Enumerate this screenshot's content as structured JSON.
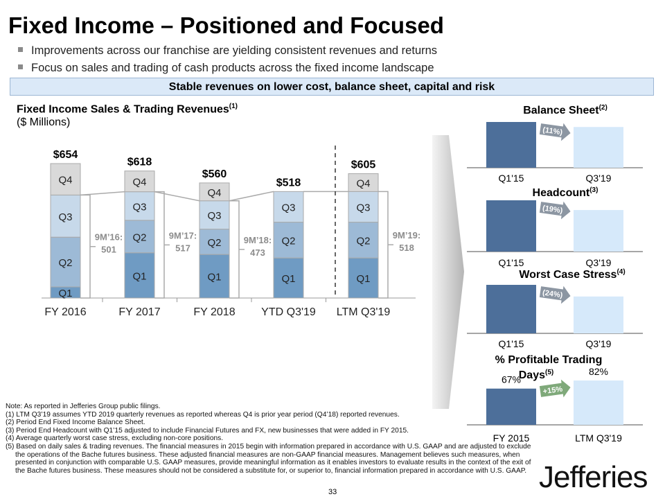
{
  "title": "Fixed Income – Positioned and Focused",
  "bullets": [
    "Improvements across our franchise are yielding consistent revenues and returns",
    "Focus on sales and trading of cash products across the fixed income landscape"
  ],
  "banner": "Stable revenues on lower cost, balance sheet, capital and risk",
  "colors": {
    "q1": "#6f9bc3",
    "q2": "#9dbad6",
    "q3": "#c7d9ea",
    "q4": "#d9d9d9",
    "dark_bar": "#4d6f9a",
    "light_bar": "#d6e9fa",
    "decline_arrow": "#8c96a2",
    "increase_arrow": "#7fa97a",
    "banner": "#dbe9f8"
  },
  "chart_data": [
    {
      "type": "bar",
      "stacked": true,
      "title": "Fixed Income Sales & Trading Revenues",
      "title_note": "(1)",
      "unit": "($ Millions)",
      "categories": [
        "FY 2016",
        "FY 2017",
        "FY 2018",
        "YTD Q3'19",
        "LTM Q3'19"
      ],
      "series": [
        {
          "name": "Q1",
          "values": [
            54,
            220,
            212,
            195,
            195
          ]
        },
        {
          "name": "Q2",
          "values": [
            242,
            158,
            123,
            174,
            174
          ]
        },
        {
          "name": "Q3",
          "values": [
            205,
            139,
            138,
            149,
            149
          ]
        },
        {
          "name": "Q4",
          "values": [
            153,
            101,
            87,
            null,
            87
          ]
        }
      ],
      "totals": [
        "$654",
        "$618",
        "$560",
        "$518",
        "$605"
      ],
      "nine_month": [
        {
          "label": "9M’16:",
          "value": "501"
        },
        {
          "label": "9M’17:",
          "value": "517"
        },
        {
          "label": "9M’18:",
          "value": "473"
        },
        {
          "label": "9M’19:",
          "value": "518"
        }
      ],
      "grid": false
    },
    {
      "type": "bar",
      "title": "Balance Sheet",
      "note": "(2)",
      "categories": [
        "Q1'15",
        "Q3'19"
      ],
      "values": [
        100,
        89
      ],
      "change": "(11%)"
    },
    {
      "type": "bar",
      "title": "Headcount",
      "note": "(3)",
      "categories": [
        "Q1'15",
        "Q3'19"
      ],
      "values": [
        100,
        81
      ],
      "change": "(19%)"
    },
    {
      "type": "bar",
      "title": "Worst Case Stress",
      "note": "(4)",
      "categories": [
        "Q1'15",
        "Q3'19"
      ],
      "values": [
        100,
        76
      ],
      "change": "(24%)"
    },
    {
      "type": "bar",
      "title": "% Profitable Trading Days",
      "note": "(5)",
      "categories": [
        "FY 2015",
        "LTM Q3'19"
      ],
      "values": [
        67,
        82
      ],
      "value_labels": [
        "67%",
        "82%"
      ],
      "change": "+15%"
    }
  ],
  "notes": [
    "Note: As reported in Jefferies Group public filings.",
    "(1) LTM Q3’19 assumes YTD 2019 quarterly revenues as reported whereas Q4 is prior year period (Q4’18) reported revenues.",
    "(2) Period End Fixed Income Balance Sheet.",
    "(3) Period End Headcount with Q1’15 adjusted to include Financial Futures and FX, new businesses that were added in FY 2015.",
    "(4) Average quarterly worst case stress, excluding non-core positions.",
    "(5) Based on daily sales & trading revenues. The financial measures in 2015 begin with information prepared in accordance with U.S. GAAP and are adjusted to exclude the operations of the Bache futures business. These adjusted financial measures are non-GAAP financial measures. Management believes such measures, when presented in conjunction with comparable U.S. GAAP measures, provide meaningful information as it enables investors to evaluate results in the context of the exit of the Bache futures business. These measures should not be considered a substitute for, or superior to, financial information prepared in accordance with U.S. GAAP."
  ],
  "logo": "Jefferies",
  "page_number": "33"
}
